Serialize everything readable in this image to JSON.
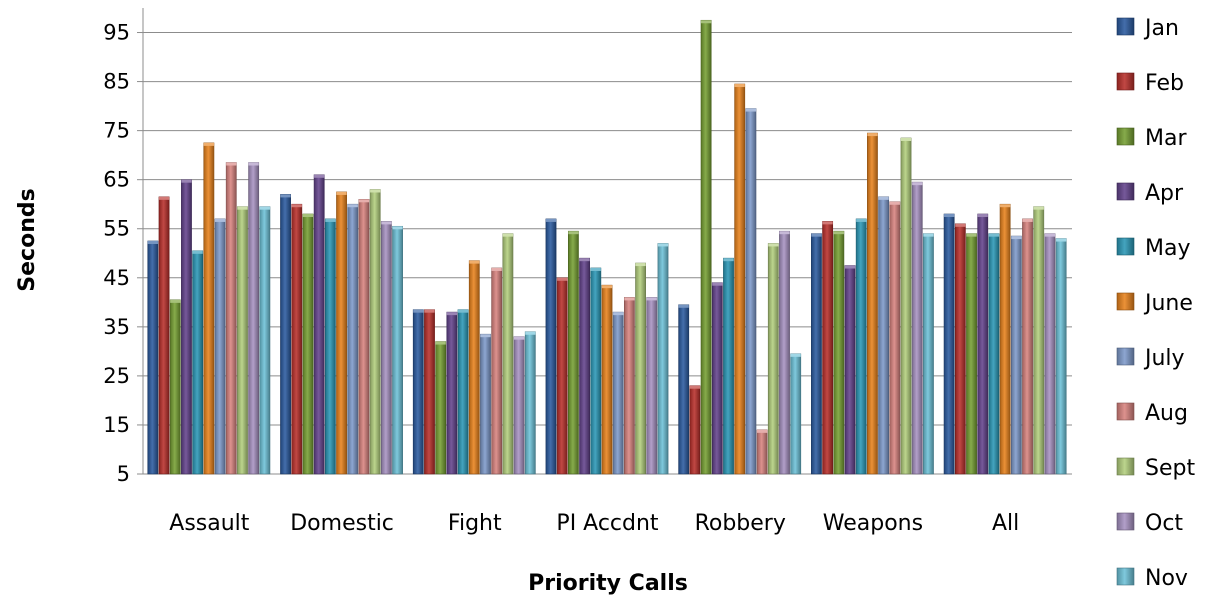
{
  "chart_data": {
    "type": "bar",
    "xlabel": "Priority Calls",
    "ylabel": "Seconds",
    "ylim": [
      5,
      100
    ],
    "yticks": [
      5,
      15,
      25,
      35,
      45,
      55,
      65,
      75,
      85,
      95
    ],
    "grid": true,
    "legend_position": "right",
    "categories": [
      "Assault",
      "Domestic",
      "Fight",
      "PI Accdnt",
      "Robbery",
      "Weapons",
      "All"
    ],
    "series": [
      {
        "name": "Jan",
        "color": "#2b5aa0",
        "values": [
          52.5,
          62,
          38.5,
          57,
          39.5,
          54,
          58
        ]
      },
      {
        "name": "Feb",
        "color": "#b92f2b",
        "values": [
          61.5,
          60,
          38.5,
          45,
          23,
          56.5,
          56
        ]
      },
      {
        "name": "Mar",
        "color": "#76a032",
        "values": [
          40.5,
          58,
          32,
          54.5,
          97.5,
          54.5,
          54
        ]
      },
      {
        "name": "Apr",
        "color": "#63428c",
        "values": [
          65,
          66,
          38,
          49,
          44,
          47.5,
          58
        ]
      },
      {
        "name": "May",
        "color": "#2a98b6",
        "values": [
          50.5,
          57,
          38.5,
          47,
          49,
          57,
          54
        ]
      },
      {
        "name": "June",
        "color": "#e8821c",
        "values": [
          72.5,
          62.5,
          48.5,
          43.5,
          84.5,
          74.5,
          60
        ]
      },
      {
        "name": "July",
        "color": "#7e9acb",
        "values": [
          57,
          60,
          33.5,
          38,
          79.5,
          61.5,
          53.5
        ]
      },
      {
        "name": "Aug",
        "color": "#d8837f",
        "values": [
          68.5,
          61,
          47,
          41,
          14,
          60.5,
          57
        ]
      },
      {
        "name": "Sept",
        "color": "#b3cf7d",
        "values": [
          59.5,
          63,
          54,
          48,
          52,
          73.5,
          59.5
        ]
      },
      {
        "name": "Oct",
        "color": "#a792c2",
        "values": [
          68.5,
          56.5,
          33,
          41,
          54.5,
          64.5,
          54
        ]
      },
      {
        "name": "Nov",
        "color": "#6dc2d8",
        "values": [
          59.5,
          55.5,
          34,
          52,
          29.5,
          54,
          53
        ]
      }
    ]
  }
}
